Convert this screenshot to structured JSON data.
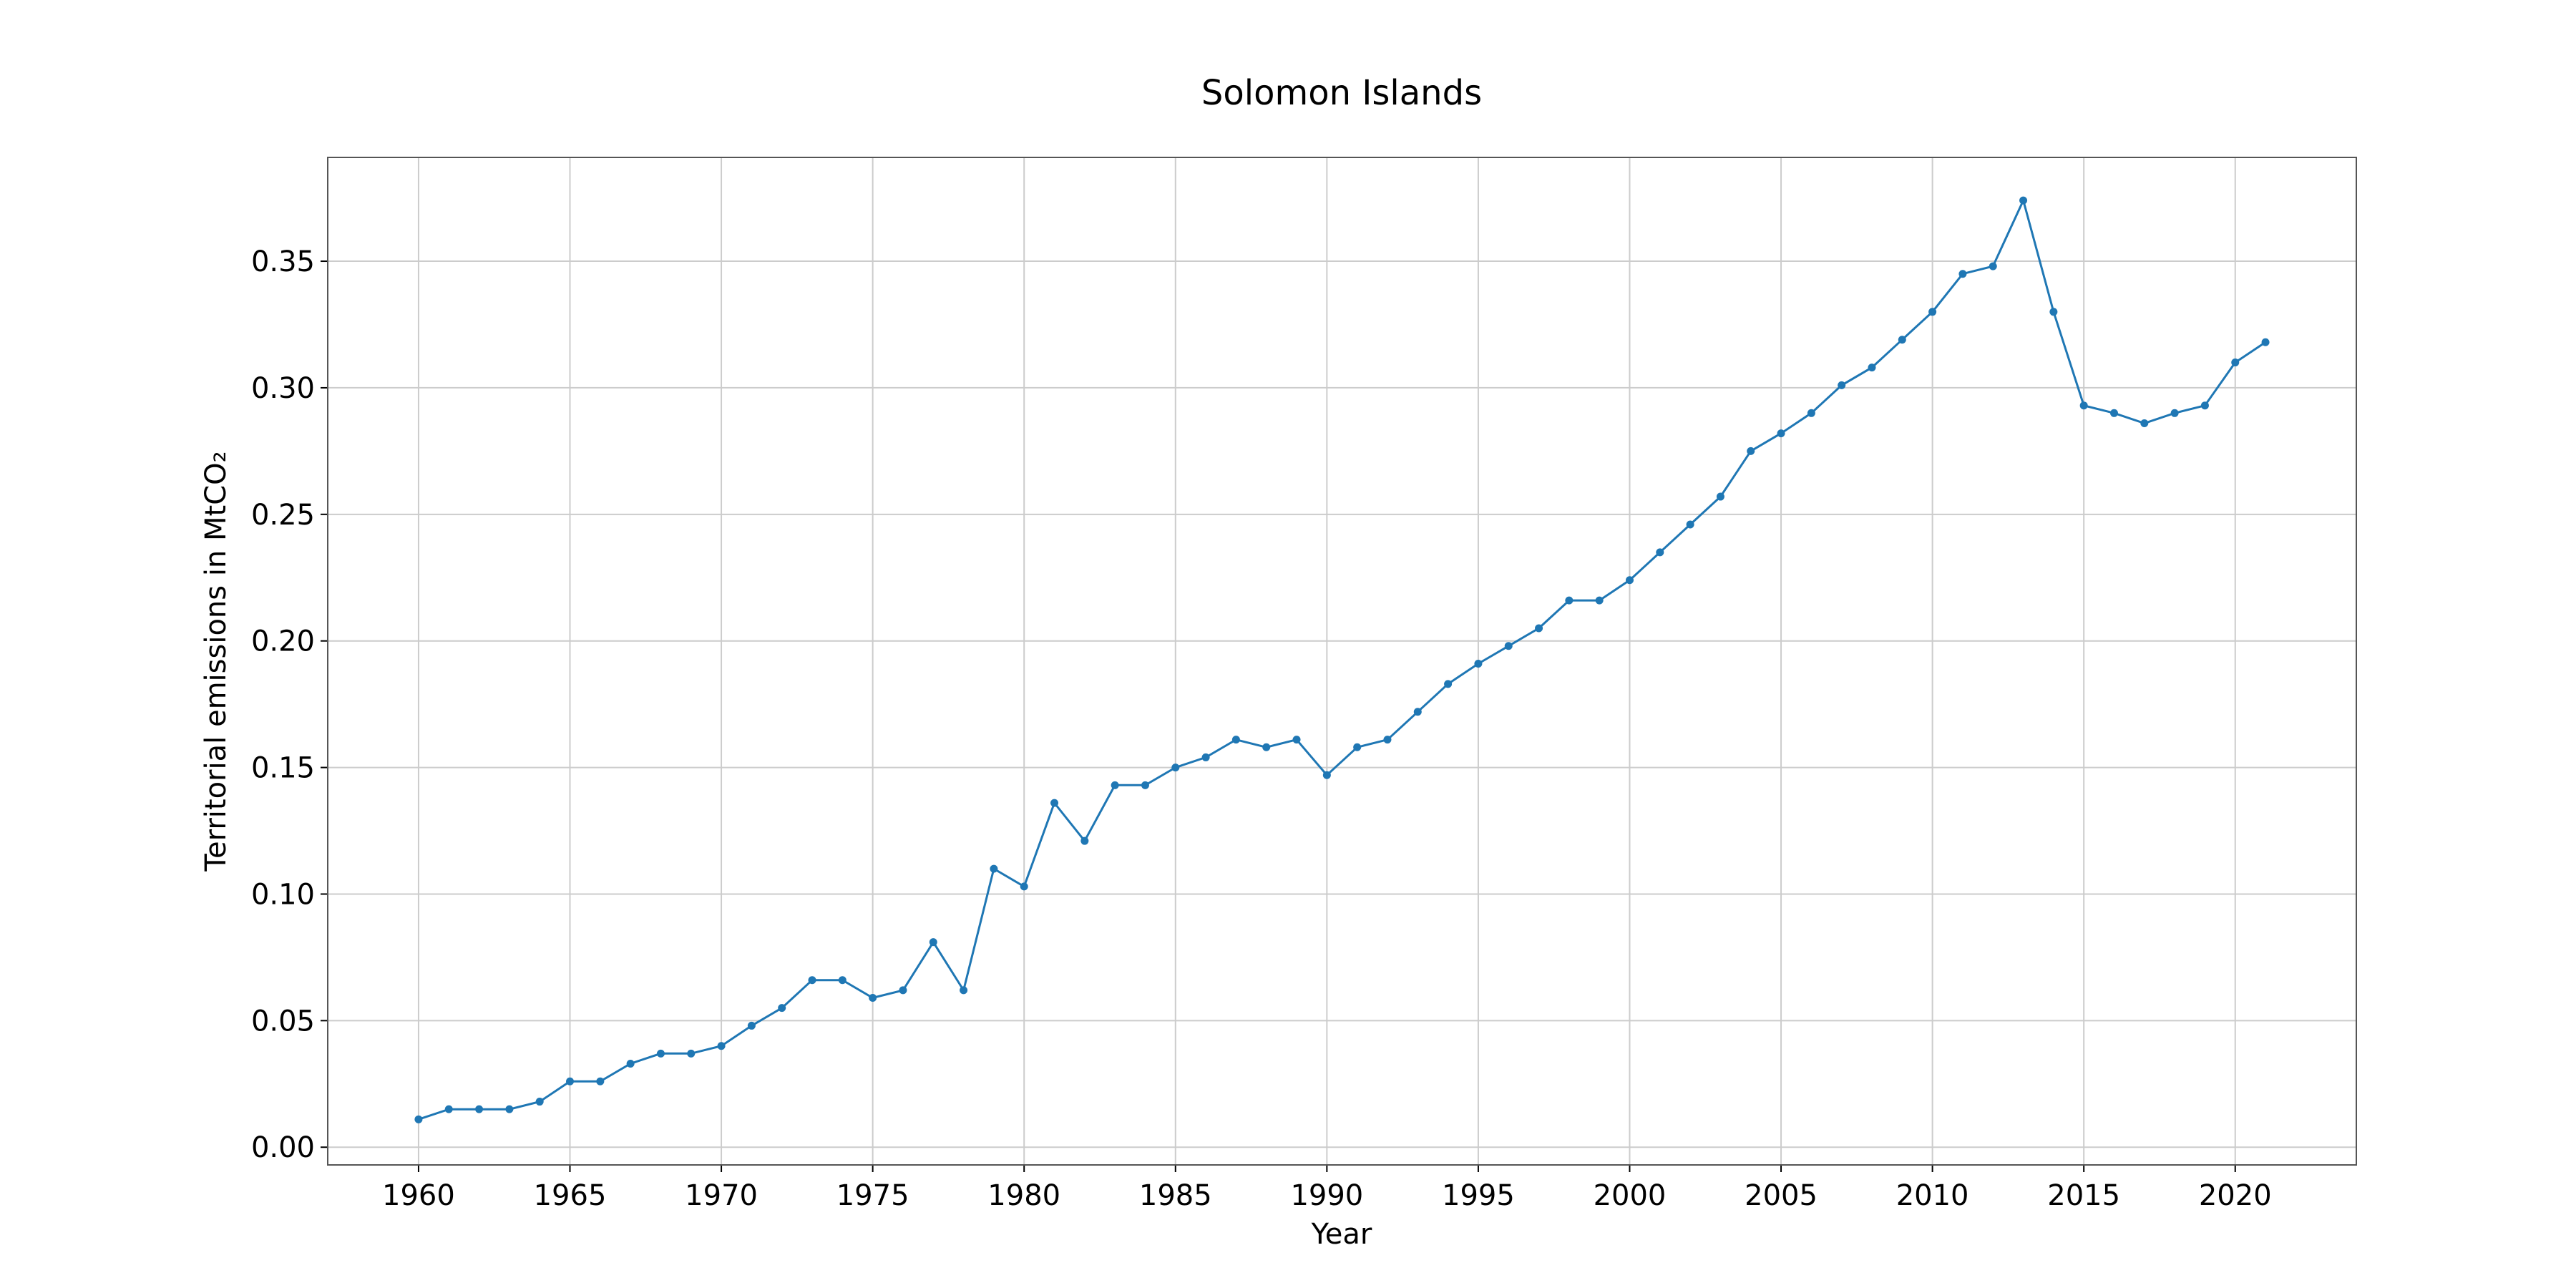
{
  "chart_data": {
    "type": "line",
    "title": "Solomon Islands",
    "xlabel": "Year",
    "ylabel": "Territorial emissions in MtCO₂",
    "xlim": [
      1957,
      2024
    ],
    "ylim": [
      -0.007,
      0.391
    ],
    "x_ticks": [
      1960,
      1965,
      1970,
      1975,
      1980,
      1985,
      1990,
      1995,
      2000,
      2005,
      2010,
      2015,
      2020
    ],
    "y_ticks": [
      0.0,
      0.05,
      0.1,
      0.15,
      0.2,
      0.25,
      0.3,
      0.35
    ],
    "y_tick_labels": [
      "0.00",
      "0.05",
      "0.10",
      "0.15",
      "0.20",
      "0.25",
      "0.30",
      "0.35"
    ],
    "grid": true,
    "series": [
      {
        "color": "#1f77b4",
        "x": [
          1960,
          1961,
          1962,
          1963,
          1964,
          1965,
          1966,
          1967,
          1968,
          1969,
          1970,
          1971,
          1972,
          1973,
          1974,
          1975,
          1976,
          1977,
          1978,
          1979,
          1980,
          1981,
          1982,
          1983,
          1984,
          1985,
          1986,
          1987,
          1988,
          1989,
          1990,
          1991,
          1992,
          1993,
          1994,
          1995,
          1996,
          1997,
          1998,
          1999,
          2000,
          2001,
          2002,
          2003,
          2004,
          2005,
          2006,
          2007,
          2008,
          2009,
          2010,
          2011,
          2012,
          2013,
          2014,
          2015,
          2016,
          2017,
          2018,
          2019,
          2020,
          2021
        ],
        "y": [
          0.011,
          0.015,
          0.015,
          0.015,
          0.018,
          0.026,
          0.026,
          0.033,
          0.037,
          0.037,
          0.04,
          0.048,
          0.055,
          0.066,
          0.066,
          0.059,
          0.062,
          0.081,
          0.062,
          0.11,
          0.103,
          0.136,
          0.121,
          0.143,
          0.143,
          0.15,
          0.154,
          0.161,
          0.158,
          0.161,
          0.147,
          0.158,
          0.161,
          0.172,
          0.183,
          0.191,
          0.198,
          0.205,
          0.216,
          0.216,
          0.224,
          0.235,
          0.246,
          0.257,
          0.275,
          0.282,
          0.29,
          0.301,
          0.308,
          0.319,
          0.33,
          0.345,
          0.348,
          0.374,
          0.33,
          0.293,
          0.29,
          0.286,
          0.29,
          0.293,
          0.31,
          0.318
        ]
      }
    ]
  }
}
